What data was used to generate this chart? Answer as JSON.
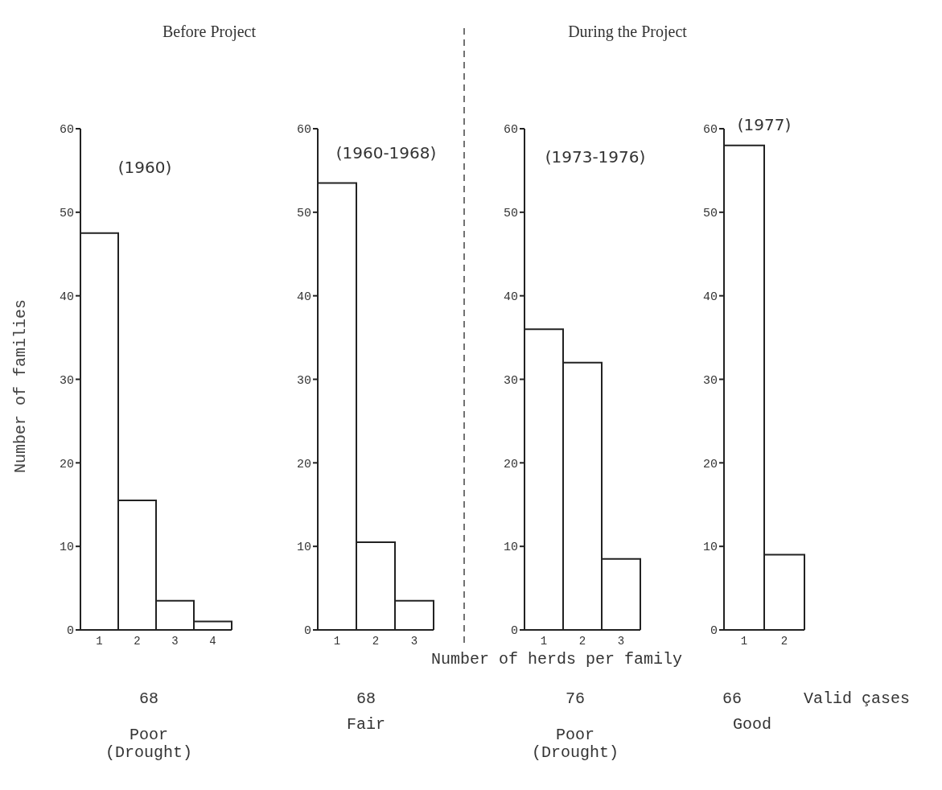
{
  "chart_data": [
    {
      "type": "bar",
      "title": "(1960)",
      "ylabel": "Number of families",
      "categories": [
        "1",
        "2",
        "3",
        "4"
      ],
      "values": [
        47.5,
        15.5,
        3.5,
        1
      ],
      "color": "#ffffff",
      "ylim": [
        0,
        60
      ],
      "yticks": [
        0,
        10,
        20,
        30,
        40,
        50,
        60
      ],
      "annotations": [
        "Before Project",
        "68",
        "Poor\n(Drought)"
      ]
    },
    {
      "type": "bar",
      "title": "(1960-1968)",
      "categories": [
        "1",
        "2",
        "3"
      ],
      "values": [
        53.5,
        10.5,
        3.5
      ],
      "color": "#ffffff",
      "ylim": [
        0,
        60
      ],
      "yticks": [
        0,
        10,
        20,
        30,
        40,
        50,
        60
      ],
      "annotations": [
        "68",
        "Fair"
      ]
    },
    {
      "type": "bar",
      "title": "(1973-1976)",
      "xlabel": "Number of herds per family",
      "categories": [
        "1",
        "2",
        "3"
      ],
      "values": [
        36,
        32,
        8.5
      ],
      "color": "#ffffff",
      "ylim": [
        0,
        60
      ],
      "yticks": [
        0,
        10,
        20,
        30,
        40,
        50,
        60
      ],
      "annotations": [
        "During the Project",
        "76",
        "Poor\n(Drought)"
      ]
    },
    {
      "type": "bar",
      "title": "(1977)",
      "categories": [
        "1",
        "2"
      ],
      "values": [
        58,
        9
      ],
      "color": "#ffffff",
      "ylim": [
        0,
        60
      ],
      "yticks": [
        0,
        10,
        20,
        30,
        40,
        50,
        60
      ],
      "annotations": [
        "66",
        "Valid çases",
        "Good"
      ]
    }
  ]
}
